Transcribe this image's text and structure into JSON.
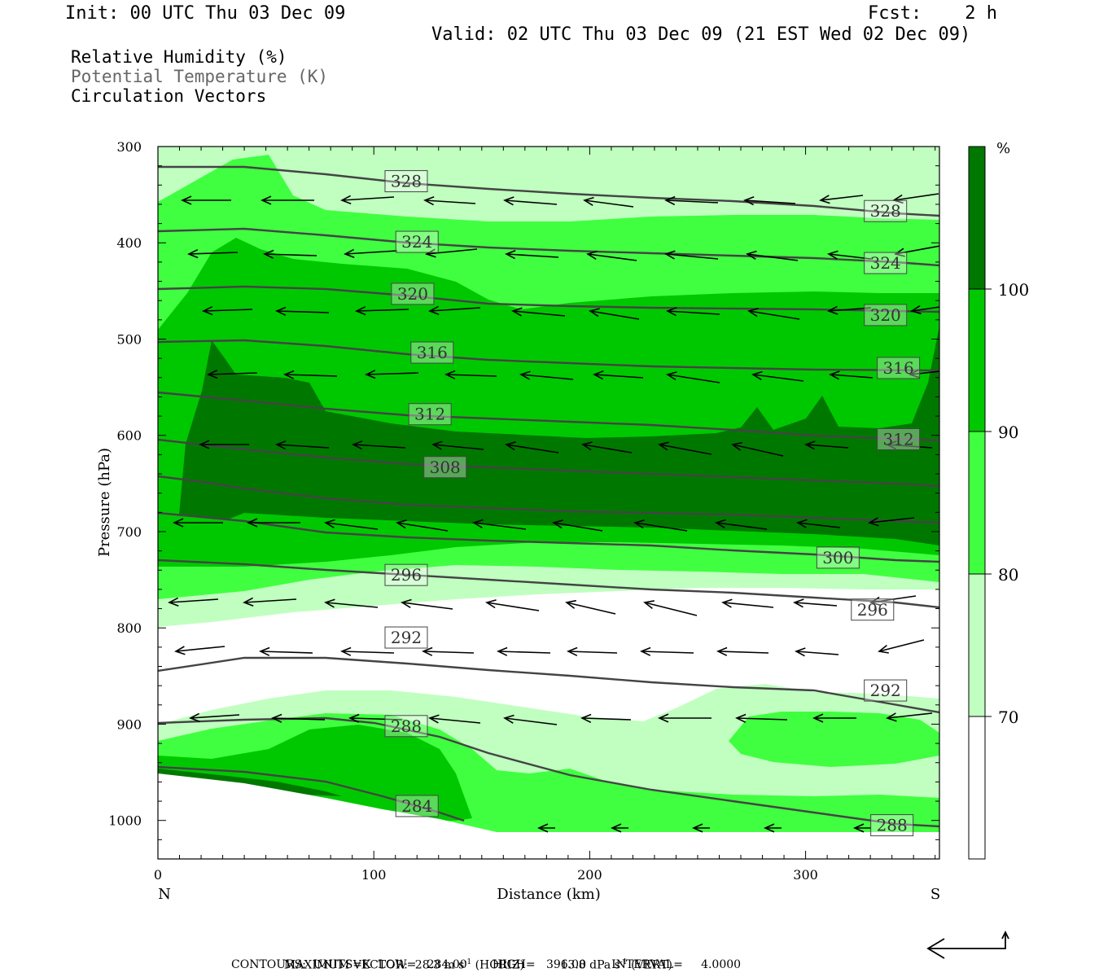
{
  "header": {
    "init": "Init: 00 UTC Thu 03 Dec 09",
    "fcst": "Fcst:    2 h",
    "valid": "Valid: 02 UTC Thu 03 Dec 09 (21 EST Wed 02 Dec 09)"
  },
  "fields": [
    {
      "label": "Relative Humidity (%)",
      "color": "#000000"
    },
    {
      "label": "Potential Temperature (K)",
      "color": "#666666"
    },
    {
      "label": "Circulation Vectors",
      "color": "#000000"
    }
  ],
  "chart_data": {
    "type": "cross-section",
    "xlabel": "Distance (km)",
    "ylabel": "Pressure (hPa)",
    "xlim": [
      0,
      362
    ],
    "ylim": [
      1040,
      300
    ],
    "x_ticks": [
      0,
      100,
      200,
      300
    ],
    "y_ticks": [
      300,
      400,
      500,
      600,
      700,
      800,
      900,
      1000
    ],
    "end_labels": {
      "left": "N",
      "right": "S"
    },
    "colorbar": {
      "unit": "%",
      "levels": [
        70,
        80,
        90,
        100
      ],
      "colors": [
        "#ffffff",
        "#c0ffc0",
        "#40ff40",
        "#00c800",
        "#007800"
      ]
    },
    "theta_contours": [
      {
        "value": 328,
        "labels": [
          {
            "x": 115,
            "p": 336
          },
          {
            "x": 337,
            "p": 367
          }
        ]
      },
      {
        "value": 324,
        "labels": [
          {
            "x": 120,
            "p": 399
          },
          {
            "x": 337,
            "p": 421
          }
        ]
      },
      {
        "value": 320,
        "labels": [
          {
            "x": 118,
            "p": 453
          },
          {
            "x": 337,
            "p": 475
          }
        ]
      },
      {
        "value": 316,
        "labels": [
          {
            "x": 127,
            "p": 514
          },
          {
            "x": 343,
            "p": 530
          }
        ]
      },
      {
        "value": 312,
        "labels": [
          {
            "x": 126,
            "p": 578
          },
          {
            "x": 343,
            "p": 604
          }
        ]
      },
      {
        "value": 308,
        "labels": [
          {
            "x": 133,
            "p": 633
          }
        ]
      },
      {
        "value": 300,
        "labels": [
          {
            "x": 315,
            "p": 727
          }
        ]
      },
      {
        "value": 296,
        "labels": [
          {
            "x": 115,
            "p": 745
          },
          {
            "x": 331,
            "p": 781
          }
        ]
      },
      {
        "value": 292,
        "labels": [
          {
            "x": 115,
            "p": 810
          },
          {
            "x": 337,
            "p": 865
          }
        ]
      },
      {
        "value": 288,
        "labels": [
          {
            "x": 115,
            "p": 902
          },
          {
            "x": 340,
            "p": 1005
          }
        ]
      },
      {
        "value": 284,
        "labels": [
          {
            "x": 120,
            "p": 985
          }
        ]
      }
    ],
    "footer": {
      "max_vector_label": "MAXIMUM VECTOR:",
      "horiz_value": "28.3",
      "horiz_unit": "m s",
      "horiz_tag": "(HORIZ)",
      "vert_value": "13.8",
      "vert_unit": "dPa s",
      "vert_tag": "(VERT)",
      "exponent": "-1",
      "contours_line": "CONTOURS:  UNITS=K  LOW=   284.00       HIGH=   396.00       INTERVAL=     4.0000"
    }
  }
}
